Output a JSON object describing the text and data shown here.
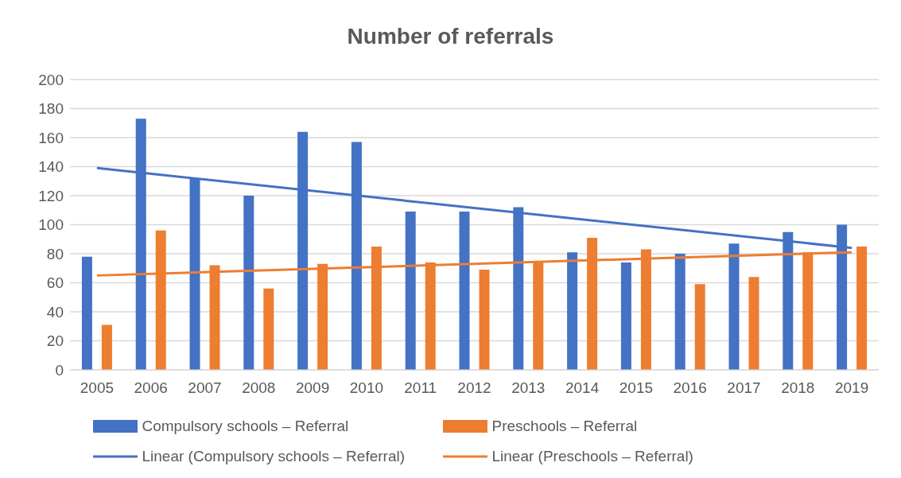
{
  "chart_data": {
    "type": "bar",
    "title": "Number of referrals",
    "categories": [
      "2005",
      "2006",
      "2007",
      "2008",
      "2009",
      "2010",
      "2011",
      "2012",
      "2013",
      "2014",
      "2015",
      "2016",
      "2017",
      "2018",
      "2019"
    ],
    "series": [
      {
        "name": "Compulsory schools – Referral",
        "color": "#4472c4",
        "values": [
          78,
          173,
          132,
          120,
          164,
          157,
          109,
          109,
          112,
          81,
          74,
          80,
          87,
          95,
          100
        ]
      },
      {
        "name": "Preschools – Referral",
        "color": "#ed7d31",
        "values": [
          31,
          96,
          72,
          56,
          73,
          85,
          74,
          69,
          75,
          91,
          83,
          59,
          64,
          81,
          85
        ]
      },
      {
        "name": "Linear (Compulsory schools – Referral)",
        "type": "line",
        "color": "#4472c4",
        "values": [
          139,
          null,
          null,
          null,
          null,
          null,
          null,
          null,
          null,
          null,
          null,
          null,
          null,
          null,
          84
        ]
      },
      {
        "name": "Linear (Preschools – Referral)",
        "type": "line",
        "color": "#ed7d31",
        "values": [
          65,
          null,
          null,
          null,
          null,
          null,
          null,
          null,
          null,
          null,
          null,
          null,
          null,
          null,
          81
        ]
      }
    ],
    "ylim": [
      0,
      200
    ],
    "yticks": [
      0,
      20,
      40,
      60,
      80,
      100,
      120,
      140,
      160,
      180,
      200
    ],
    "grid": "y",
    "legend": "bottom",
    "marker": "none"
  }
}
